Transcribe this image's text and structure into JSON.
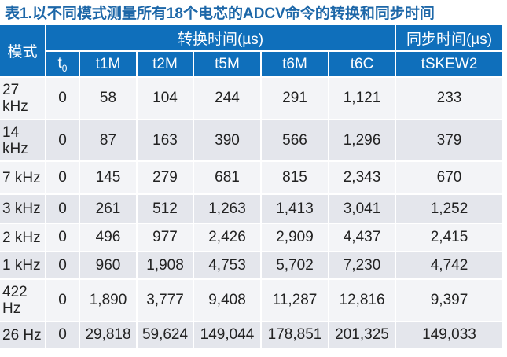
{
  "title": "表1.以不同模式测量所有18个电芯的ADCV命令的转换和同步时间",
  "header": {
    "mode": "模式",
    "conversion_group": "转换时间(µs)",
    "sync_group": "同步时间(µs)",
    "t0_base": "t",
    "t0_sub": "0",
    "columns": [
      "t1M",
      "t2M",
      "t5M",
      "t6M",
      "t6C",
      "tSKEW2"
    ]
  },
  "rows": [
    {
      "mode": "27 kHz",
      "t0": "0",
      "t1M": "58",
      "t2M": "104",
      "t5M": "244",
      "t6M": "291",
      "t6C": "1,121",
      "tSKEW2": "233"
    },
    {
      "mode": "14 kHz",
      "t0": "0",
      "t1M": "87",
      "t2M": "163",
      "t5M": "390",
      "t6M": "566",
      "t6C": "1,296",
      "tSKEW2": "379"
    },
    {
      "mode": "7 kHz",
      "t0": "0",
      "t1M": "145",
      "t2M": "279",
      "t5M": "681",
      "t6M": "815",
      "t6C": "2,343",
      "tSKEW2": "670"
    },
    {
      "mode": "3 kHz",
      "t0": "0",
      "t1M": "261",
      "t2M": "512",
      "t5M": "1,263",
      "t6M": "1,413",
      "t6C": "3,041",
      "tSKEW2": "1,252"
    },
    {
      "mode": "2 kHz",
      "t0": "0",
      "t1M": "496",
      "t2M": "977",
      "t5M": "2,426",
      "t6M": "2,909",
      "t6C": "4,437",
      "tSKEW2": "2,415"
    },
    {
      "mode": "1 kHz",
      "t0": "0",
      "t1M": "960",
      "t2M": "1,908",
      "t5M": "4,753",
      "t6M": "5,702",
      "t6C": "7,230",
      "tSKEW2": "4,742"
    },
    {
      "mode": "422 Hz",
      "t0": "0",
      "t1M": "1,890",
      "t2M": "3,777",
      "t5M": "9,408",
      "t6M": "11,287",
      "t6C": "12,816",
      "tSKEW2": "9,397"
    },
    {
      "mode": "26 Hz",
      "t0": "0",
      "t1M": "29,818",
      "t2M": "59,624",
      "t5M": "149,044",
      "t6M": "178,851",
      "t6C": "201,325",
      "tSKEW2": "149,033"
    }
  ],
  "colors": {
    "header_bg": "#0f6fbb",
    "title": "#1d67a8",
    "row_light": "#f3f4f7",
    "row_dark": "#e4e6ec"
  }
}
